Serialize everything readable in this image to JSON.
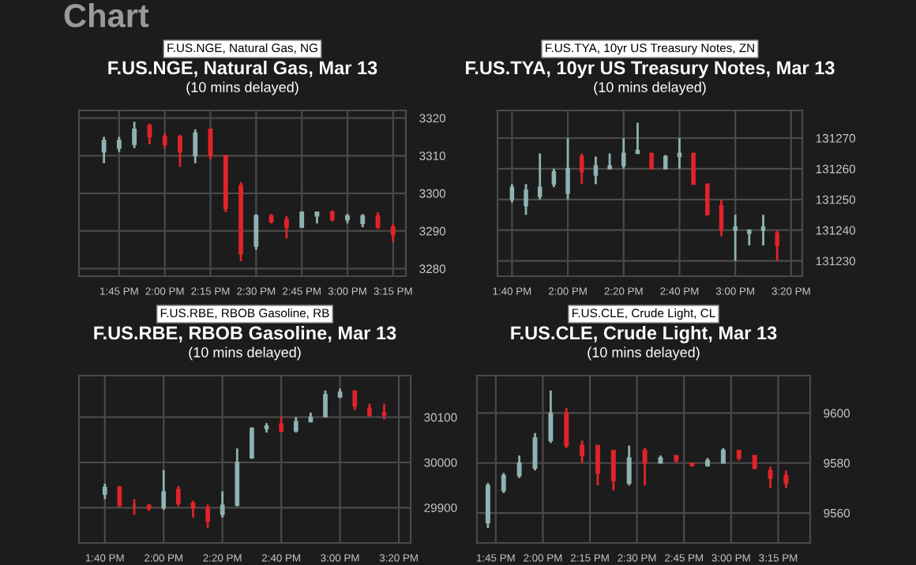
{
  "chart_data": [
    {
      "type": "other",
      "title": "Chart"
    },
    {
      "type": "candlestick",
      "title": "F.US.NGE, Natural Gas, Mar 13",
      "subtitle": "(10 mins delayed)",
      "annotations": [
        "F.US.NGE, Natural Gas, NG"
      ],
      "x": [
        13.6667,
        13.75,
        13.8333,
        13.9167,
        14.0,
        14.0833,
        14.1667,
        14.25,
        14.3333,
        14.4167,
        14.5,
        14.5833,
        14.6667,
        14.75,
        14.8333,
        14.9167,
        15.0,
        15.0833,
        15.1667,
        15.25
      ],
      "ohlc": [
        [
          3311,
          3315,
          3308,
          3314
        ],
        [
          3312,
          3315,
          3311,
          3314
        ],
        [
          3313,
          3319,
          3312,
          3317
        ],
        [
          3318,
          3318.5,
          3313,
          3315
        ],
        [
          3315,
          3316,
          3312,
          3313
        ],
        [
          3315,
          3315.5,
          3307,
          3311
        ],
        [
          3310,
          3317,
          3308,
          3316
        ],
        [
          3317,
          3317,
          3309,
          3310
        ],
        [
          3310,
          3310,
          3295,
          3296
        ],
        [
          3302,
          3303,
          3282,
          3284
        ],
        [
          3286,
          3294.5,
          3285,
          3294
        ],
        [
          3294,
          3294.5,
          3292,
          3292.5
        ],
        [
          3293,
          3294,
          3288,
          3291
        ],
        [
          3291,
          3295,
          3291,
          3295
        ],
        [
          3294,
          3295,
          3292,
          3295
        ],
        [
          3295,
          3295.5,
          3292.5,
          3293
        ],
        [
          3293,
          3294.5,
          3292,
          3294
        ],
        [
          3292,
          3294.5,
          3291,
          3294
        ],
        [
          3294,
          3295,
          3290.5,
          3291
        ],
        [
          3291,
          3292,
          3287,
          3289
        ]
      ],
      "colors": [
        "#8fb3b3",
        "#8fb3b3",
        "#8fb3b3",
        "#e0242a",
        "#e0242a",
        "#e0242a",
        "#8fb3b3",
        "#e0242a",
        "#e0242a",
        "#e0242a",
        "#8fb3b3",
        "#e0242a",
        "#e0242a",
        "#8fb3b3",
        "#8fb3b3",
        "#e0242a",
        "#8fb3b3",
        "#8fb3b3",
        "#e0242a",
        "#e0242a"
      ],
      "xlim": [
        13.53,
        15.32
      ],
      "xticks": [
        {
          "value": 13.75,
          "label": "1:45 PM"
        },
        {
          "value": 14.0,
          "label": "2:00 PM"
        },
        {
          "value": 14.25,
          "label": "2:15 PM"
        },
        {
          "value": 14.5,
          "label": "2:30 PM"
        },
        {
          "value": 14.75,
          "label": "2:45 PM"
        },
        {
          "value": 15.0,
          "label": "3:00 PM"
        },
        {
          "value": 15.25,
          "label": "3:15 PM"
        }
      ],
      "ylim": [
        3278,
        3322
      ],
      "yticks": [
        3280,
        3290,
        3300,
        3310,
        3320
      ],
      "grid": true
    },
    {
      "type": "candlestick",
      "title": "F.US.TYA, 10yr US Treasury Notes, Mar 13",
      "subtitle": "(10 mins delayed)",
      "annotations": [
        "F.US.TYA, 10yr US Treasury Notes, ZN"
      ],
      "x": [
        13.6667,
        13.75,
        13.8333,
        13.9167,
        14.0,
        14.0833,
        14.1667,
        14.25,
        14.3333,
        14.4167,
        14.5,
        14.5833,
        14.6667,
        14.75,
        14.8333,
        14.9167,
        15.0,
        15.0833,
        15.1667,
        15.25
      ],
      "ohlc": [
        [
          131250,
          131255,
          131249,
          131254
        ],
        [
          131248,
          131255,
          131245,
          131253
        ],
        [
          131251,
          131265,
          131250,
          131254
        ],
        [
          131255,
          131260,
          131254,
          131259
        ],
        [
          131252,
          131270,
          131250,
          131260
        ],
        [
          131264,
          131265,
          131255,
          131259
        ],
        [
          131258,
          131264,
          131255,
          131261
        ],
        [
          131260,
          131265,
          131260,
          131261
        ],
        [
          131261,
          131270,
          131260,
          131265
        ],
        [
          131265,
          131275,
          131265,
          131266
        ],
        [
          131265,
          131265,
          131260,
          131260
        ],
        [
          131260,
          131264.5,
          131260,
          131264
        ],
        [
          131264,
          131270,
          131260,
          131265
        ],
        [
          131265,
          131265,
          131255,
          131255
        ],
        [
          131255,
          131255,
          131245,
          131245
        ],
        [
          131248,
          131250,
          131238,
          131240
        ],
        [
          131240,
          131245,
          131230,
          131241
        ],
        [
          131239,
          131240,
          131235,
          131240
        ],
        [
          131240,
          131245,
          131235,
          131241
        ],
        [
          131239,
          131240,
          131230,
          131235
        ]
      ],
      "colors": [
        "#8fb3b3",
        "#8fb3b3",
        "#8fb3b3",
        "#8fb3b3",
        "#8fb3b3",
        "#e0242a",
        "#8fb3b3",
        "#8fb3b3",
        "#8fb3b3",
        "#8fb3b3",
        "#e0242a",
        "#8fb3b3",
        "#8fb3b3",
        "#e0242a",
        "#e0242a",
        "#e0242a",
        "#8fb3b3",
        "#8fb3b3",
        "#8fb3b3",
        "#e0242a"
      ],
      "xlim": [
        13.58,
        15.4
      ],
      "xticks": [
        {
          "value": 13.6667,
          "label": "1:40 PM"
        },
        {
          "value": 14.0,
          "label": "2:00 PM"
        },
        {
          "value": 14.3333,
          "label": "2:20 PM"
        },
        {
          "value": 14.6667,
          "label": "2:40 PM"
        },
        {
          "value": 15.0,
          "label": "3:00 PM"
        },
        {
          "value": 15.3333,
          "label": "3:20 PM"
        }
      ],
      "ylim": [
        131225,
        131279
      ],
      "yticks": [
        131230,
        131240,
        131250,
        131260,
        131270
      ],
      "grid": true
    },
    {
      "type": "candlestick",
      "title": "F.US.RBE, RBOB Gasoline, Mar 13",
      "subtitle": "(10 mins delayed)",
      "annotations": [
        "F.US.RBE, RBOB Gasoline, RB"
      ],
      "x": [
        13.6667,
        13.75,
        13.8333,
        13.9167,
        14.0,
        14.0833,
        14.1667,
        14.25,
        14.3333,
        14.4167,
        14.5,
        14.5833,
        14.6667,
        14.75,
        14.8333,
        14.9167,
        15.0,
        15.0833,
        15.1667,
        15.25
      ],
      "ohlc": [
        [
          29930,
          29953,
          29919,
          29945
        ],
        [
          29945,
          29948,
          29901,
          29905
        ],
        [
          29905,
          29919,
          29884,
          29905
        ],
        [
          29905,
          29907,
          29893,
          29898
        ],
        [
          29900,
          29983,
          29895,
          29935
        ],
        [
          29940,
          29948,
          29903,
          29910
        ],
        [
          29910,
          29915,
          29878,
          29900
        ],
        [
          29900,
          29907,
          29855,
          29870
        ],
        [
          29885,
          29936,
          29878,
          29905
        ],
        [
          29905,
          30031,
          29903,
          30000
        ],
        [
          30010,
          30078,
          30008,
          30075
        ],
        [
          30075,
          30087,
          30066,
          30080
        ],
        [
          30085,
          30101,
          30066,
          30070
        ],
        [
          30070,
          30100,
          30066,
          30090
        ],
        [
          30090,
          30110,
          30090,
          30100
        ],
        [
          30101,
          30159,
          30101,
          30150
        ],
        [
          30145,
          30163,
          30142,
          30155
        ],
        [
          30158,
          30159,
          30116,
          30125
        ],
        [
          30120,
          30130,
          30101,
          30105
        ],
        [
          30110,
          30130,
          30095,
          30105
        ]
      ],
      "colors": [
        "#8fb3b3",
        "#e0242a",
        "#e0242a",
        "#e0242a",
        "#8fb3b3",
        "#e0242a",
        "#e0242a",
        "#e0242a",
        "#8fb3b3",
        "#8fb3b3",
        "#8fb3b3",
        "#8fb3b3",
        "#e0242a",
        "#8fb3b3",
        "#8fb3b3",
        "#8fb3b3",
        "#8fb3b3",
        "#e0242a",
        "#e0242a",
        "#e0242a"
      ],
      "xlim": [
        13.52,
        15.4
      ],
      "xticks": [
        {
          "value": 13.6667,
          "label": "1:40 PM"
        },
        {
          "value": 14.0,
          "label": "2:00 PM"
        },
        {
          "value": 14.3333,
          "label": "2:20 PM"
        },
        {
          "value": 14.6667,
          "label": "2:40 PM"
        },
        {
          "value": 15.0,
          "label": "3:00 PM"
        },
        {
          "value": 15.3333,
          "label": "3:20 PM"
        }
      ],
      "ylim": [
        29822,
        30192
      ],
      "yticks": [
        29900,
        30000,
        30100
      ],
      "grid": true
    },
    {
      "type": "candlestick",
      "title": "F.US.CLE, Crude Light, Mar 13",
      "subtitle": "(10 mins delayed)",
      "annotations": [
        "F.US.CLE, Crude Light, CL"
      ],
      "x": [
        13.7083,
        13.7917,
        13.875,
        13.9583,
        14.0417,
        14.125,
        14.2083,
        14.2917,
        14.375,
        14.4583,
        14.5417,
        14.625,
        14.7083,
        14.7917,
        14.875,
        14.9583,
        15.0417,
        15.125,
        15.2083,
        15.2917
      ],
      "ohlc": [
        [
          9556,
          9572,
          9554,
          9571
        ],
        [
          9569,
          9576,
          9568,
          9575
        ],
        [
          9575,
          9583,
          9574,
          9580
        ],
        [
          9578,
          9592,
          9577,
          9590
        ],
        [
          9589,
          9609,
          9588,
          9600
        ],
        [
          9600,
          9602,
          9586,
          9587
        ],
        [
          9587,
          9589,
          9580,
          9583
        ],
        [
          9587,
          9587,
          9571,
          9576
        ],
        [
          9585,
          9585,
          9569,
          9573
        ],
        [
          9572,
          9587,
          9571,
          9582
        ],
        [
          9585,
          9586,
          9571,
          9580
        ],
        [
          9580,
          9583,
          9580,
          9582
        ],
        [
          9583,
          9583,
          9580,
          9581
        ],
        [
          9580,
          9580,
          9578.5,
          9579
        ],
        [
          9579,
          9582,
          9578.5,
          9581
        ],
        [
          9580,
          9586,
          9580,
          9585
        ],
        [
          9585,
          9585,
          9581,
          9582
        ],
        [
          9583,
          9583,
          9577.5,
          9578
        ],
        [
          9577,
          9578.5,
          9570,
          9574
        ],
        [
          9575,
          9577,
          9570,
          9572
        ]
      ],
      "colors": [
        "#8fb3b3",
        "#8fb3b3",
        "#8fb3b3",
        "#8fb3b3",
        "#8fb3b3",
        "#e0242a",
        "#e0242a",
        "#e0242a",
        "#e0242a",
        "#8fb3b3",
        "#e0242a",
        "#8fb3b3",
        "#e0242a",
        "#e0242a",
        "#8fb3b3",
        "#8fb3b3",
        "#e0242a",
        "#e0242a",
        "#e0242a",
        "#e0242a"
      ],
      "xlim": [
        13.65,
        15.42
      ],
      "xticks": [
        {
          "value": 13.75,
          "label": "1:45 PM"
        },
        {
          "value": 14.0,
          "label": "2:00 PM"
        },
        {
          "value": 14.25,
          "label": "2:15 PM"
        },
        {
          "value": 14.5,
          "label": "2:30 PM"
        },
        {
          "value": 14.75,
          "label": "2:45 PM"
        },
        {
          "value": 15.0,
          "label": "3:00 PM"
        },
        {
          "value": 15.25,
          "label": "3:15 PM"
        }
      ],
      "ylim": [
        9548,
        9615
      ],
      "yticks": [
        9560,
        9580,
        9600
      ],
      "grid": true
    }
  ]
}
